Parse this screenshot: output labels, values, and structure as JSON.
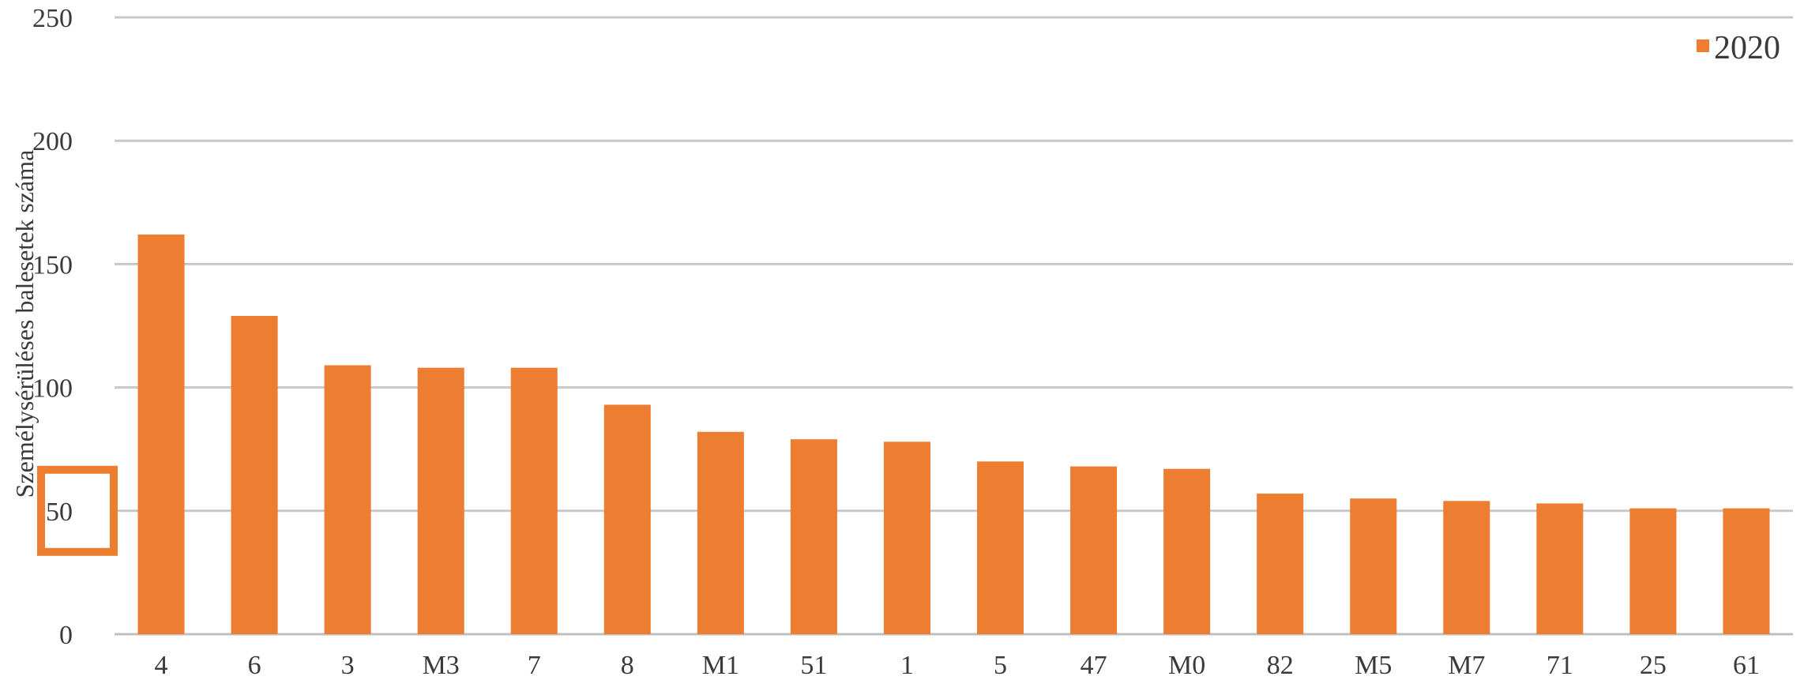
{
  "chart_data": {
    "type": "bar",
    "categories": [
      "4",
      "6",
      "3",
      "M3",
      "7",
      "8",
      "M1",
      "51",
      "1",
      "5",
      "47",
      "M0",
      "82",
      "M5",
      "M7",
      "71",
      "25",
      "61"
    ],
    "series": [
      {
        "name": "2020",
        "color": "#ED7D31",
        "values": [
          162,
          129,
          109,
          108,
          108,
          93,
          82,
          79,
          78,
          70,
          68,
          67,
          57,
          55,
          54,
          53,
          51,
          51
        ]
      }
    ],
    "ylabel": "Személysérüléses balesetek száma",
    "ylim": [
      0,
      250
    ],
    "yticks": [
      0,
      50,
      100,
      150,
      200,
      250
    ],
    "grid": true,
    "legend_position": "top-right",
    "highlight": {
      "tick": 50,
      "color": "#ED7D31"
    }
  }
}
